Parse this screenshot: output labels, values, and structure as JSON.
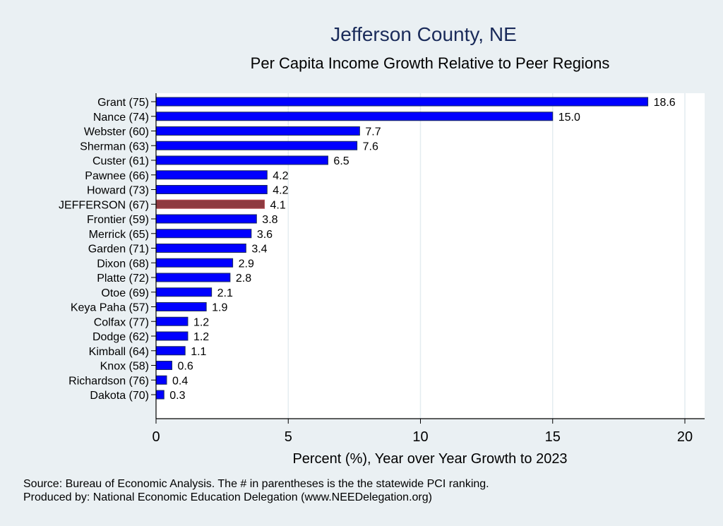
{
  "chart_data": {
    "type": "bar",
    "orientation": "horizontal",
    "title": "Jefferson County, NE",
    "subtitle": "Per Capita Income Growth Relative to Peer Regions",
    "xlabel": "Percent (%), Year over Year Growth to 2023",
    "ylabel": "",
    "xlim": [
      0,
      20
    ],
    "xticks": [
      0,
      5,
      10,
      15,
      20
    ],
    "grid": true,
    "categories": [
      "Grant (75)",
      "Nance (74)",
      "Webster (60)",
      "Sherman (63)",
      "Custer (61)",
      "Pawnee (66)",
      "Howard (73)",
      "JEFFERSON (67)",
      "Frontier (59)",
      "Merrick (65)",
      "Garden (71)",
      "Dixon (68)",
      "Platte (72)",
      "Otoe (69)",
      "Keya Paha (57)",
      "Colfax (77)",
      "Dodge (62)",
      "Kimball (64)",
      "Knox (58)",
      "Richardson (76)",
      "Dakota (70)"
    ],
    "values": [
      18.6,
      15.0,
      7.7,
      7.6,
      6.5,
      4.2,
      4.2,
      4.1,
      3.8,
      3.6,
      3.4,
      2.9,
      2.8,
      2.1,
      1.9,
      1.2,
      1.2,
      1.1,
      0.6,
      0.4,
      0.3
    ],
    "data_labels": [
      "18.6",
      "15.0",
      "7.7",
      "7.6",
      "6.5",
      "4.2",
      "4.2",
      "4.1",
      "3.8",
      "3.6",
      "3.4",
      "2.9",
      "2.8",
      "2.1",
      "1.9",
      "1.2",
      "1.2",
      "1.1",
      "0.6",
      "0.4",
      "0.3"
    ],
    "highlight": "JEFFERSON (67)",
    "colors": {
      "bar": "#0000ff",
      "highlight": "#8f3a40",
      "bar_outline": "#1a2b5a",
      "title": "#1a2b5a",
      "background": "#eaf0f3"
    }
  },
  "notes": [
    "Source: Bureau of Economic Analysis. The # in parentheses is the the statewide PCI ranking.",
    "Produced by: National Economic Education Delegation (www.NEEDelegation.org)"
  ]
}
